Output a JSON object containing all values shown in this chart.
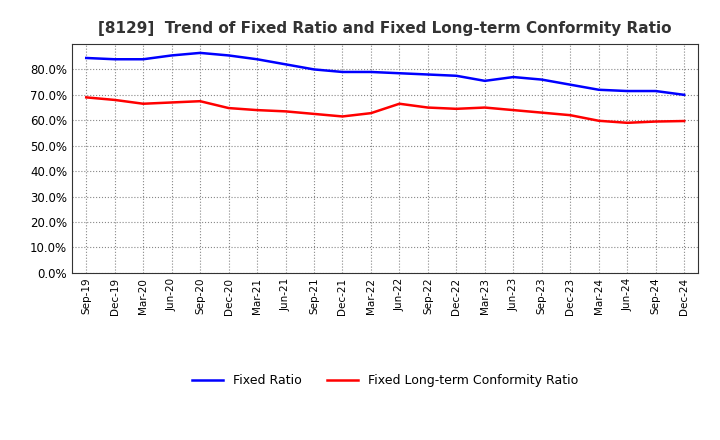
{
  "title": "[8129]  Trend of Fixed Ratio and Fixed Long-term Conformity Ratio",
  "x_labels": [
    "Sep-19",
    "Dec-19",
    "Mar-20",
    "Jun-20",
    "Sep-20",
    "Dec-20",
    "Mar-21",
    "Jun-21",
    "Sep-21",
    "Dec-21",
    "Mar-22",
    "Jun-22",
    "Sep-22",
    "Dec-22",
    "Mar-23",
    "Jun-23",
    "Sep-23",
    "Dec-23",
    "Mar-24",
    "Jun-24",
    "Sep-24",
    "Dec-24"
  ],
  "fixed_ratio": [
    0.845,
    0.84,
    0.84,
    0.855,
    0.865,
    0.855,
    0.84,
    0.82,
    0.8,
    0.79,
    0.79,
    0.785,
    0.78,
    0.775,
    0.755,
    0.77,
    0.76,
    0.74,
    0.72,
    0.715,
    0.715,
    0.7
  ],
  "fixed_lt_ratio": [
    0.69,
    0.68,
    0.665,
    0.67,
    0.675,
    0.648,
    0.64,
    0.635,
    0.625,
    0.615,
    0.628,
    0.665,
    0.65,
    0.645,
    0.65,
    0.64,
    0.63,
    0.62,
    0.598,
    0.59,
    0.595,
    0.597
  ],
  "fixed_ratio_color": "#0000FF",
  "fixed_lt_ratio_color": "#FF0000",
  "ylim": [
    0.0,
    0.9
  ],
  "yticks": [
    0.0,
    0.1,
    0.2,
    0.3,
    0.4,
    0.5,
    0.6,
    0.7,
    0.8
  ],
  "background_color": "#ffffff",
  "grid_color": "#aaaaaa",
  "legend_fixed_ratio": "Fixed Ratio",
  "legend_fixed_lt_ratio": "Fixed Long-term Conformity Ratio"
}
